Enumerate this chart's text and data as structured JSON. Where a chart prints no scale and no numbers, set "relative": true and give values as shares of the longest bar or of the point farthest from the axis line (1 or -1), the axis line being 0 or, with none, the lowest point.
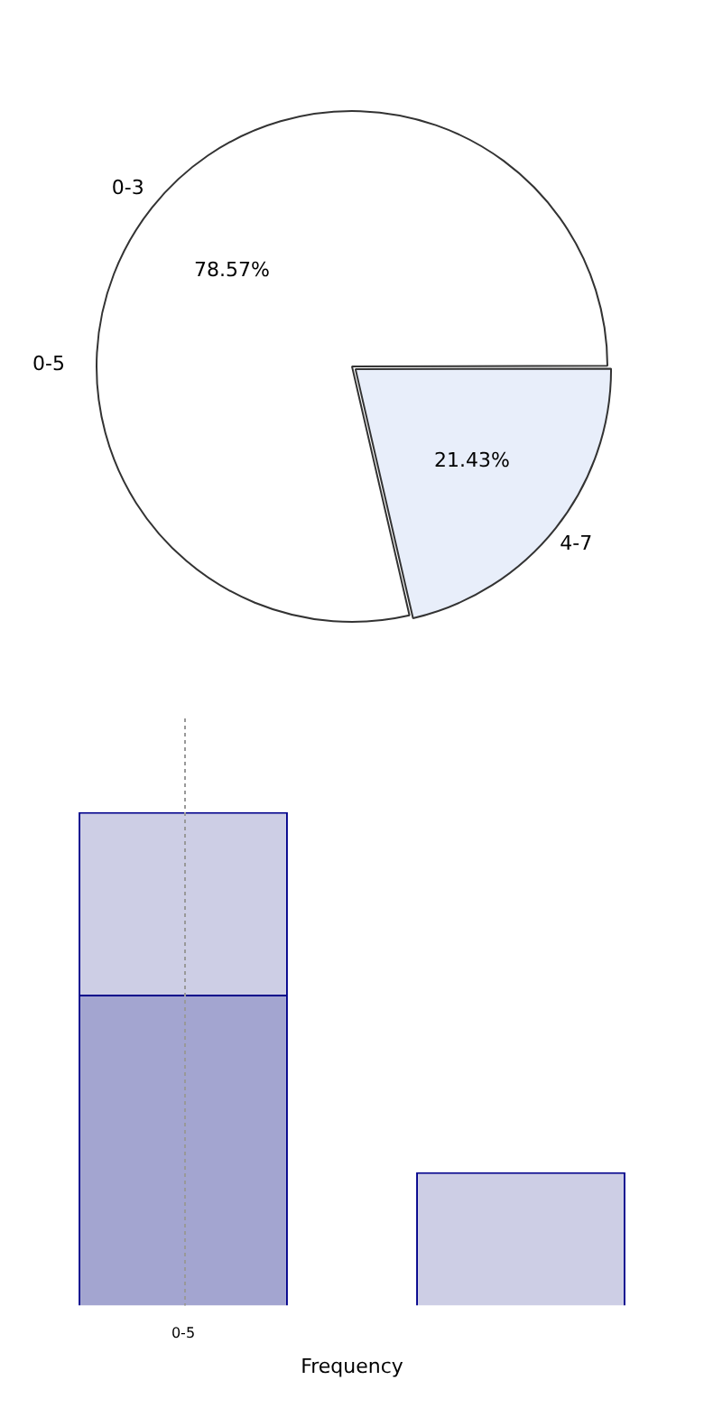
{
  "chart_data": [
    {
      "type": "pie",
      "categories": [
        "0-3",
        "4-7"
      ],
      "values": [
        78.57,
        21.43
      ],
      "colors": [
        "#ffffff",
        "#e8eefa"
      ],
      "value_labels": [
        "78.57%",
        "21.43%"
      ],
      "annotations": [
        "0-5"
      ]
    },
    {
      "type": "bar",
      "stacked": true,
      "relative": true,
      "categories": [
        "0-5",
        null
      ],
      "xlabel": "Frequency",
      "ref_lines": [
        {
          "axis": "x",
          "value": "0-5",
          "color": "#999999",
          "line_style": "dotted"
        }
      ],
      "series": [
        {
          "color": "#a3a5d0",
          "values": [
            0.63,
            null
          ]
        },
        {
          "color": "#cdcee5",
          "values": [
            0.37,
            0.27
          ]
        }
      ]
    }
  ]
}
